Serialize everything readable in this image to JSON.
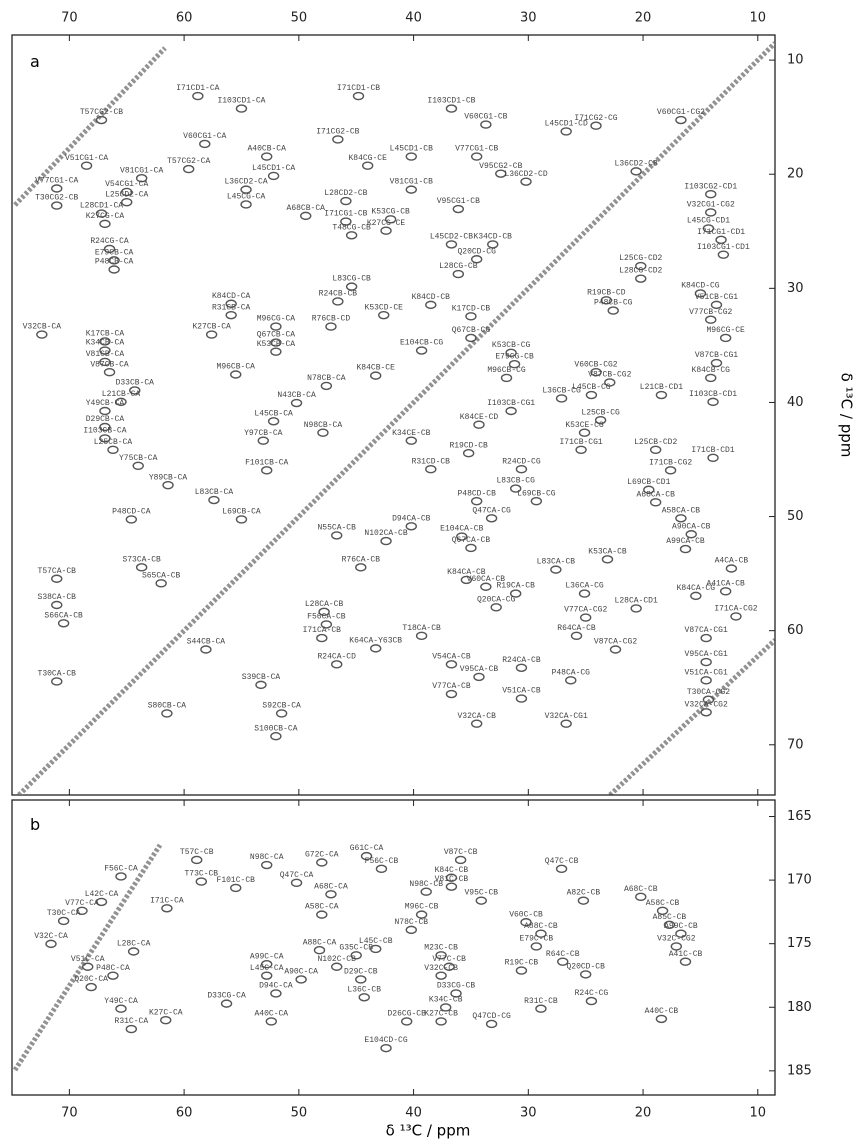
{
  "chart_data": [
    {
      "type": "scatter",
      "panel": "a",
      "ylabel": "δ ¹³C / ppm",
      "xlim": [
        75,
        8.5
      ],
      "ylim": [
        7.8,
        74.4
      ],
      "xticks": [
        70,
        60,
        50,
        40,
        30,
        20,
        10
      ],
      "yticks": [
        10,
        20,
        30,
        40,
        50,
        60,
        70
      ],
      "color": "#555555",
      "labels": [
        "I71CD1-CA",
        "I103CD1-CA",
        "I71CD1-CB",
        "I103CD1-CB",
        "V60CG1-CB",
        "L45CD1-CD",
        "I71CG2-CG",
        "V60CG1-CG2",
        "T57CG2-CB",
        "V60CG1-CA",
        "T57CG2-CA",
        "A40CB-CA",
        "I71CG2-CB",
        "L45CD1-CB",
        "V77CG1-CB",
        "L36CD2-CB",
        "V51CG1-CA",
        "V81CG1-CA",
        "L45CD1-CA",
        "K84CG-CE",
        "V95CG2-CB",
        "L36CD2-CD",
        "I103CG2-CD1",
        "V77CG1-CA",
        "L36CD2-CA",
        "L28CD2-CB",
        "V81CG1-CB",
        "V54CG1-CA",
        "L25CD2-CA",
        "T30CG2-CB",
        "L45CG-CA",
        "A68CB-CA",
        "K53CG-CB",
        "V95CG1-CB",
        "V32CG1-CG2",
        "L28CD1-CA",
        "K27CG-CA",
        "I71CG1-CB",
        "K27CG-CE",
        "L45CG-CD1",
        "T48CG-CB",
        "L45CD2-CB",
        "I71CG1-CD1",
        "I103CG1-CD1",
        "R24CG-CA",
        "E79CB-CA",
        "P48CB-CA",
        "L25CG-CD2",
        "L28CG-CD2",
        "L28CG-CB",
        "L83CG-CB",
        "Q20CD-CG",
        "K34CD-CB",
        "K84CD-CA",
        "R24CB-CB",
        "K84CD-CB",
        "K84CD-CG",
        "R19CB-CD",
        "V51CB-CG1",
        "P48CB-CG",
        "V32CB-CA",
        "K17CB-CA",
        "R31CB-CA",
        "K53CD-CE",
        "R76CB-CD",
        "M96CG-CA",
        "K27CB-CA",
        "V77CB-CG2",
        "M96CG-CE",
        "K34CB-CA",
        "Q67CB-CA",
        "K17CD-CB",
        "Q67CB-CG",
        "V81CB-CA",
        "K53CB-CA",
        "E104CB-CG",
        "V87CB-CA",
        "M96CB-CA",
        "N78CB-CA",
        "K84CB-CE",
        "E79CG-CB",
        "K53CB-CG",
        "M96CB-CG",
        "V60CB-CG2",
        "V87CB-CG1",
        "K84CB-CG",
        "V87CB-CG2",
        "D33CB-CA",
        "N43CB-CA",
        "L36CB-CG",
        "L45CB-CG",
        "L21CB-CD1",
        "I103CB-CD1",
        "L21CB-CA",
        "Y49CB-CA",
        "I103CB-CG1",
        "K84CE-CD",
        "L25CB-CG",
        "L45CB-CA",
        "N98CB-CA",
        "D29CB-CA",
        "I103CB-CA",
        "Y97CB-CA",
        "K34CE-CB",
        "R19CD-CB",
        "K53CE-CG",
        "L25CB-CD2",
        "I71CB-CD1",
        "L25CB-CA",
        "R31CD-CB",
        "R24CD-CG",
        "I71CB-CG1",
        "I71CB-CG2",
        "Y75CB-CA",
        "F101CB-CA",
        "Y89CB-CA",
        "L83CB-CA",
        "L83CB-CG",
        "P48CD-CB",
        "L69CB-CG",
        "L69CB-CD1",
        "A68CA-CB",
        "P48CD-CA",
        "L69CB-CA",
        "Q47CA-CG",
        "A58CA-CB",
        "D94CA-CB",
        "N55CA-CB",
        "N102CA-CB",
        "E104CA-CB",
        "A90CA-CB",
        "A99CA-CB",
        "K53CA-CB",
        "R76CA-CB",
        "Q67CA-CB",
        "A4CA-CB",
        "L83CA-CB",
        "T57CA-CB",
        "S73CA-CB",
        "S65CA-CB",
        "K84CA-CB",
        "V60CA-CB",
        "A41CA-CB",
        "R19CA-CB",
        "L36CA-CG",
        "K84CA-CG",
        "L28CA-CB",
        "F56CA-CB",
        "Q20CA-CG",
        "L28CA-CD1",
        "I71CA-CG2",
        "S38CA-CB",
        "S66CA-CB",
        "I71CA-CB",
        "T18CA-CB",
        "R64CA-CB",
        "V87CA-CG1",
        "K64CA-Y63CB",
        "R24CA-CD",
        "V54CA-CB",
        "R24CA-CB",
        "V87CA-CG2",
        "V95CA-CG1",
        "S44CB-CA",
        "V95CA-CB",
        "P48CA-CG",
        "V51CA-CG1",
        "T30CA-CB",
        "S39CB-CA",
        "V77CA-CB",
        "V51CA-CB",
        "T30CA-CG2",
        "S80CB-CA",
        "S92CB-CA",
        "V32CA-CG2",
        "V32CA-CB",
        "V32CA-CG1",
        "S100CB-CA",
        "V77CA-CG2"
      ],
      "x": [
        58.8,
        55.0,
        44.8,
        36.7,
        33.7,
        26.7,
        24.1,
        16.7,
        67.2,
        58.2,
        59.6,
        52.8,
        46.6,
        40.2,
        34.5,
        20.6,
        68.5,
        63.7,
        52.2,
        44.0,
        32.4,
        30.2,
        14.1,
        71.1,
        54.6,
        45.9,
        40.2,
        65.0,
        65.0,
        71.1,
        54.6,
        49.4,
        42.0,
        36.1,
        14.1,
        67.2,
        66.9,
        45.9,
        42.4,
        14.3,
        45.4,
        36.7,
        13.2,
        13.0,
        66.5,
        66.1,
        66.1,
        20.2,
        20.2,
        36.1,
        45.4,
        34.5,
        33.1,
        55.9,
        46.6,
        38.5,
        15.0,
        23.2,
        13.6,
        22.6,
        72.4,
        66.9,
        55.9,
        42.6,
        47.2,
        52.0,
        57.6,
        14.1,
        12.8,
        66.9,
        52.0,
        35.0,
        35.0,
        66.9,
        52.0,
        39.3,
        66.5,
        55.5,
        47.6,
        43.3,
        31.2,
        31.5,
        31.9,
        24.1,
        13.6,
        14.1,
        22.9,
        64.3,
        50.2,
        27.1,
        24.5,
        18.4,
        13.9,
        65.5,
        66.9,
        31.5,
        34.3,
        23.7,
        52.2,
        47.9,
        66.9,
        66.9,
        53.1,
        40.2,
        35.2,
        25.1,
        18.9,
        13.9,
        66.2,
        38.5,
        30.6,
        25.4,
        17.6,
        64.0,
        52.8,
        61.4,
        57.4,
        31.1,
        34.5,
        29.3,
        19.5,
        18.9,
        64.6,
        55.0,
        33.2,
        16.7,
        40.2,
        46.7,
        42.4,
        35.8,
        15.8,
        16.3,
        23.1,
        44.6,
        35.0,
        12.3,
        27.6,
        71.1,
        63.7,
        62.0,
        35.4,
        33.7,
        12.8,
        31.1,
        25.1,
        15.4,
        47.8,
        47.6,
        32.8,
        20.6,
        11.9,
        71.1,
        70.5,
        48.0,
        39.3,
        25.8,
        14.5,
        43.3,
        46.7,
        36.7,
        30.6,
        22.4,
        14.5,
        58.1,
        34.3,
        26.3,
        14.5,
        71.1,
        53.3,
        36.7,
        30.6,
        14.3,
        61.5,
        51.5,
        14.5,
        34.5,
        26.7,
        52.0,
        25.0
      ],
      "y": [
        12.8,
        13.9,
        12.8,
        13.9,
        15.3,
        15.9,
        15.4,
        14.9,
        14.9,
        17.0,
        19.2,
        18.1,
        16.6,
        18.1,
        18.1,
        19.4,
        18.9,
        20.0,
        19.8,
        18.9,
        19.6,
        20.3,
        21.4,
        20.9,
        21.0,
        22.0,
        21.0,
        21.2,
        22.1,
        22.4,
        22.3,
        23.3,
        23.6,
        22.7,
        23.0,
        23.1,
        24.0,
        23.8,
        24.6,
        24.4,
        25.0,
        25.8,
        25.4,
        26.7,
        26.2,
        27.2,
        28.0,
        27.7,
        28.8,
        28.4,
        29.5,
        27.1,
        25.8,
        31.0,
        30.8,
        31.1,
        30.1,
        30.7,
        31.1,
        31.6,
        33.7,
        34.3,
        32.0,
        32.0,
        33.0,
        33.0,
        33.7,
        32.4,
        34.0,
        35.1,
        34.4,
        32.1,
        34.0,
        36.1,
        35.2,
        35.1,
        37.0,
        37.2,
        38.2,
        37.3,
        36.3,
        35.3,
        37.5,
        37.0,
        36.2,
        37.5,
        37.9,
        38.6,
        39.7,
        39.3,
        39.0,
        39.0,
        39.6,
        39.6,
        40.4,
        40.4,
        41.6,
        41.2,
        41.3,
        42.3,
        41.8,
        42.8,
        43.0,
        43.0,
        44.1,
        42.3,
        43.8,
        44.5,
        43.8,
        45.5,
        45.5,
        43.8,
        45.6,
        45.2,
        45.6,
        46.9,
        48.2,
        47.2,
        48.3,
        48.3,
        47.3,
        48.4,
        49.9,
        49.9,
        49.8,
        49.8,
        50.5,
        51.3,
        51.8,
        51.4,
        51.2,
        52.5,
        53.4,
        54.1,
        52.4,
        54.2,
        54.3,
        55.1,
        54.1,
        55.5,
        55.2,
        55.8,
        56.2,
        56.4,
        56.4,
        56.6,
        58.0,
        59.1,
        57.6,
        57.7,
        58.4,
        57.4,
        59.0,
        60.3,
        60.1,
        60.1,
        60.3,
        61.2,
        62.6,
        62.6,
        62.9,
        61.3,
        62.4,
        61.3,
        63.7,
        64.0,
        64.0,
        64.1,
        64.4,
        65.2,
        65.6,
        65.7,
        66.9,
        66.9,
        66.8,
        67.8,
        67.8,
        68.9,
        58.5
      ]
    },
    {
      "type": "scatter",
      "panel": "b",
      "xlabel": "δ ¹³C / ppm",
      "xlim": [
        75,
        8.5
      ],
      "ylim": [
        163.7,
        186.9
      ],
      "xticks": [
        70,
        60,
        50,
        40,
        30,
        20,
        10
      ],
      "yticks": [
        165,
        170,
        175,
        180,
        185
      ],
      "color": "#555555",
      "labels": [
        "T57C-CB",
        "N98C-CA",
        "G72C-CA",
        "G61C-CA",
        "F56C-CB",
        "V87C-CB",
        "Q47C-CB",
        "K84C-CB",
        "V81C-CB",
        "F56C-CA",
        "Q47C-CA",
        "T73C-CB",
        "F101C-CB",
        "A68C-CA",
        "N98C-CB",
        "V95C-CB",
        "A82C-CB",
        "A68C-CB",
        "L42C-CA",
        "I71C-CA",
        "M96C-CB",
        "A58C-CB",
        "V77C-CA",
        "T30C-CA",
        "V60C-CB",
        "A85C-CB",
        "A88C-CB",
        "A99C-CB",
        "N78C-CB",
        "A58C-CA",
        "L28C-CA",
        "E79C-CB",
        "V32C-CG2",
        "V32C-CA",
        "G35C-CB",
        "L45C-CB",
        "M23C-CB",
        "A88C-CA",
        "N102C-CB",
        "D29C-CB",
        "V77C-CB",
        "V51C-CA",
        "P48C-CA",
        "Q20C-CA",
        "A99C-CA",
        "A41C-CB",
        "L45C-CA",
        "A90C-CA",
        "R64C-CB",
        "Q20CD-CB",
        "V32C-CB",
        "L36C-CB",
        "R19C-CB",
        "D94C-CA",
        "D33CG-CB",
        "D33CG-CA",
        "R24C-CG",
        "Y49C-CA",
        "K34C-CB",
        "R31C-CB",
        "A40C-CA",
        "K27C-CA",
        "R31C-CA",
        "D26CG-CB",
        "K27C-CB",
        "Q47CD-CG",
        "A40C-CB",
        "E104CD-CG"
      ],
      "x": [
        58.9,
        52.8,
        48.0,
        44.1,
        42.8,
        35.9,
        27.1,
        36.7,
        36.7,
        65.5,
        50.2,
        58.5,
        55.5,
        47.2,
        38.9,
        34.1,
        25.2,
        20.2,
        67.2,
        61.5,
        39.3,
        18.3,
        68.9,
        70.5,
        30.2,
        17.7,
        28.9,
        16.7,
        40.2,
        48.0,
        64.4,
        29.3,
        17.1,
        71.6,
        45.0,
        43.3,
        37.6,
        48.2,
        46.7,
        44.6,
        36.9,
        68.4,
        66.2,
        68.1,
        52.8,
        16.3,
        52.8,
        49.8,
        27.0,
        25.0,
        37.6,
        44.3,
        30.6,
        52.0,
        36.3,
        56.3,
        24.5,
        65.5,
        37.2,
        28.9,
        52.4,
        61.6,
        64.6,
        40.6,
        37.6,
        33.2,
        18.4,
        42.4
      ],
      "y": [
        168.1,
        168.5,
        168.3,
        167.8,
        168.8,
        168.1,
        168.8,
        169.5,
        170.2,
        169.4,
        169.9,
        169.8,
        170.3,
        170.8,
        170.6,
        171.3,
        171.3,
        171.0,
        171.4,
        171.9,
        172.4,
        172.1,
        172.1,
        172.9,
        173.0,
        173.2,
        173.9,
        173.9,
        173.6,
        172.4,
        175.3,
        174.9,
        174.9,
        174.7,
        175.6,
        175.1,
        175.6,
        175.2,
        176.5,
        177.5,
        176.5,
        176.5,
        177.2,
        178.1,
        176.3,
        176.1,
        177.2,
        177.5,
        176.1,
        177.1,
        177.2,
        178.9,
        176.8,
        178.6,
        178.6,
        179.4,
        179.2,
        179.8,
        179.7,
        179.8,
        180.8,
        180.7,
        181.4,
        180.8,
        180.8,
        181.0,
        180.6,
        182.9
      ]
    }
  ]
}
